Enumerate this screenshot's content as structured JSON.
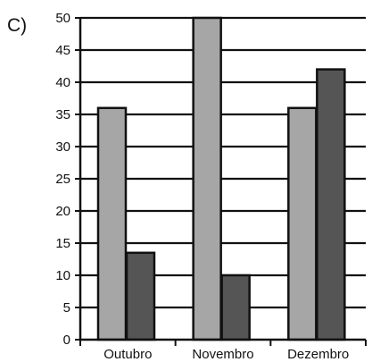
{
  "panel_label": "C)",
  "chart_data": {
    "type": "bar",
    "title": "",
    "xlabel": "",
    "ylabel": "",
    "categories": [
      "Outubro",
      "Novembro",
      "Dezembro"
    ],
    "series": [
      {
        "values": [
          36,
          50,
          36
        ],
        "color": "#a6a6a6"
      },
      {
        "values": [
          13.5,
          10,
          42
        ],
        "color": "#555555"
      }
    ],
    "ylim": [
      0,
      50
    ],
    "yticks": [
      0,
      5,
      10,
      15,
      20,
      25,
      30,
      35,
      40,
      45,
      50
    ],
    "grid": true,
    "legend": "none"
  }
}
